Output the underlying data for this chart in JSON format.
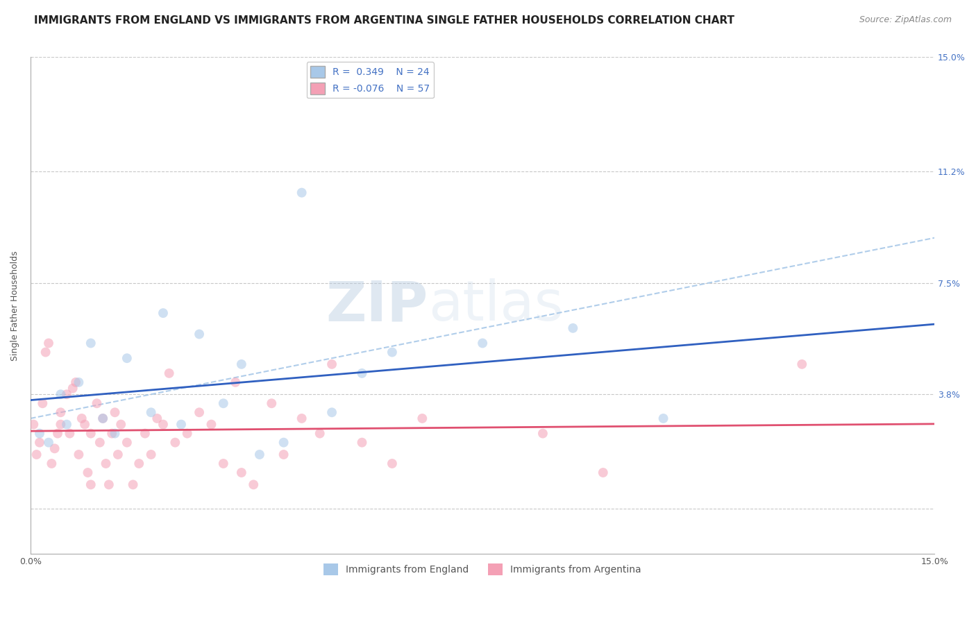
{
  "title": "IMMIGRANTS FROM ENGLAND VS IMMIGRANTS FROM ARGENTINA SINGLE FATHER HOUSEHOLDS CORRELATION CHART",
  "source": "Source: ZipAtlas.com",
  "ylabel": "Single Father Households",
  "xlim": [
    0.0,
    15.0
  ],
  "ylim": [
    -1.5,
    15.0
  ],
  "ytick_values": [
    0.0,
    3.8,
    7.5,
    11.2,
    15.0
  ],
  "ytick_labels": [
    "",
    "3.8%",
    "7.5%",
    "11.2%",
    "15.0%"
  ],
  "england_color": "#a8c8e8",
  "argentina_color": "#f4a0b5",
  "england_line_color": "#3060c0",
  "argentina_line_color": "#e05070",
  "legend_r_england": "R =  0.349",
  "legend_n_england": "N = 24",
  "legend_r_argentina": "R = -0.076",
  "legend_n_argentina": "N = 57",
  "watermark_zip": "ZIP",
  "watermark_atlas": "atlas",
  "england_scatter": [
    [
      0.15,
      2.5
    ],
    [
      0.3,
      2.2
    ],
    [
      0.5,
      3.8
    ],
    [
      0.6,
      2.8
    ],
    [
      0.8,
      4.2
    ],
    [
      1.0,
      5.5
    ],
    [
      1.2,
      3.0
    ],
    [
      1.4,
      2.5
    ],
    [
      1.6,
      5.0
    ],
    [
      2.0,
      3.2
    ],
    [
      2.2,
      6.5
    ],
    [
      2.5,
      2.8
    ],
    [
      2.8,
      5.8
    ],
    [
      3.2,
      3.5
    ],
    [
      3.5,
      4.8
    ],
    [
      3.8,
      1.8
    ],
    [
      4.2,
      2.2
    ],
    [
      4.5,
      10.5
    ],
    [
      5.0,
      3.2
    ],
    [
      5.5,
      4.5
    ],
    [
      6.0,
      5.2
    ],
    [
      7.5,
      5.5
    ],
    [
      9.0,
      6.0
    ],
    [
      10.5,
      3.0
    ]
  ],
  "argentina_scatter": [
    [
      0.05,
      2.8
    ],
    [
      0.1,
      1.8
    ],
    [
      0.15,
      2.2
    ],
    [
      0.2,
      3.5
    ],
    [
      0.25,
      5.2
    ],
    [
      0.3,
      5.5
    ],
    [
      0.35,
      1.5
    ],
    [
      0.4,
      2.0
    ],
    [
      0.45,
      2.5
    ],
    [
      0.5,
      3.2
    ],
    [
      0.5,
      2.8
    ],
    [
      0.6,
      3.8
    ],
    [
      0.65,
      2.5
    ],
    [
      0.7,
      4.0
    ],
    [
      0.75,
      4.2
    ],
    [
      0.8,
      1.8
    ],
    [
      0.85,
      3.0
    ],
    [
      0.9,
      2.8
    ],
    [
      0.95,
      1.2
    ],
    [
      1.0,
      0.8
    ],
    [
      1.0,
      2.5
    ],
    [
      1.1,
      3.5
    ],
    [
      1.15,
      2.2
    ],
    [
      1.2,
      3.0
    ],
    [
      1.25,
      1.5
    ],
    [
      1.3,
      0.8
    ],
    [
      1.35,
      2.5
    ],
    [
      1.4,
      3.2
    ],
    [
      1.45,
      1.8
    ],
    [
      1.5,
      2.8
    ],
    [
      1.6,
      2.2
    ],
    [
      1.7,
      0.8
    ],
    [
      1.8,
      1.5
    ],
    [
      1.9,
      2.5
    ],
    [
      2.0,
      1.8
    ],
    [
      2.1,
      3.0
    ],
    [
      2.2,
      2.8
    ],
    [
      2.3,
      4.5
    ],
    [
      2.4,
      2.2
    ],
    [
      2.6,
      2.5
    ],
    [
      2.8,
      3.2
    ],
    [
      3.0,
      2.8
    ],
    [
      3.2,
      1.5
    ],
    [
      3.4,
      4.2
    ],
    [
      3.5,
      1.2
    ],
    [
      3.7,
      0.8
    ],
    [
      4.0,
      3.5
    ],
    [
      4.2,
      1.8
    ],
    [
      4.5,
      3.0
    ],
    [
      4.8,
      2.5
    ],
    [
      5.0,
      4.8
    ],
    [
      5.5,
      2.2
    ],
    [
      6.0,
      1.5
    ],
    [
      6.5,
      3.0
    ],
    [
      8.5,
      2.5
    ],
    [
      9.5,
      1.2
    ],
    [
      12.8,
      4.8
    ]
  ],
  "title_fontsize": 11,
  "source_fontsize": 9,
  "axis_fontsize": 9,
  "tick_fontsize": 9,
  "legend_fontsize": 10,
  "scatter_size": 100,
  "scatter_alpha": 0.55,
  "background_color": "#ffffff",
  "grid_color": "#c8c8c8",
  "tick_color": "#4472c4",
  "axis_label_color": "#555555"
}
